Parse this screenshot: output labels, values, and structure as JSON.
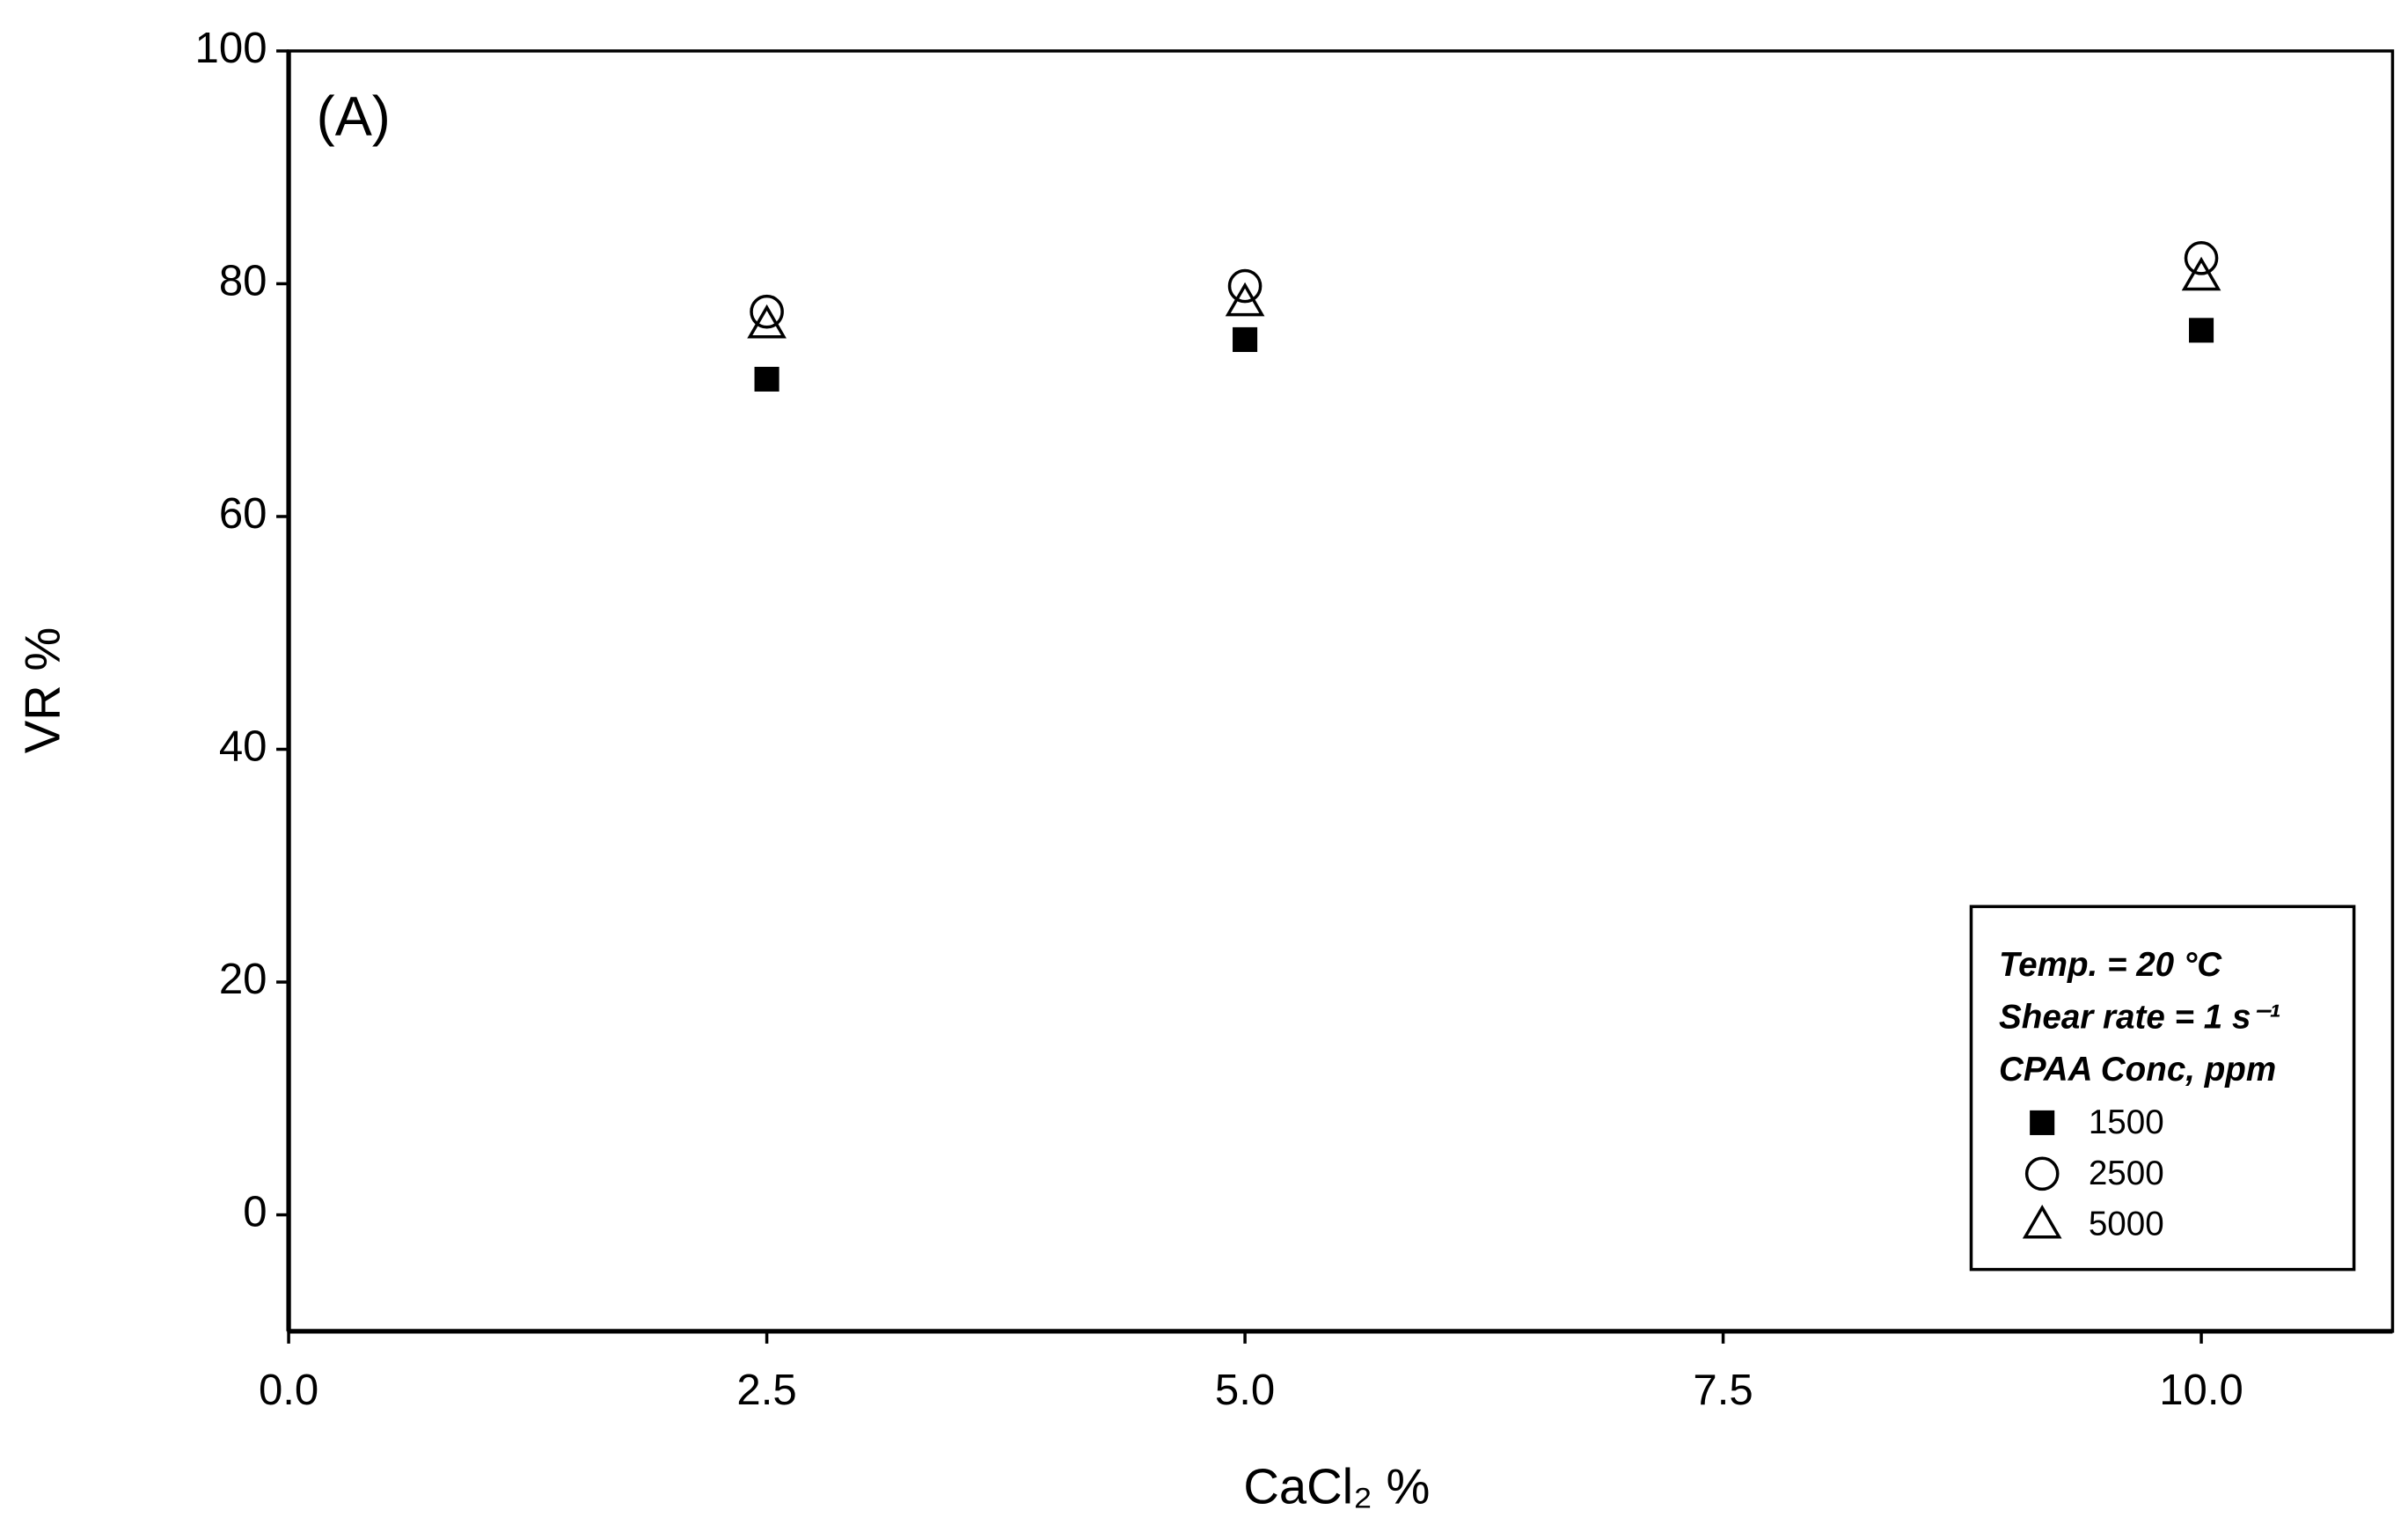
{
  "chart_data": {
    "type": "scatter",
    "panel_label": "(A)",
    "x_label": "CaCl₂ %",
    "y_label": "VR %",
    "xlim": [
      0,
      11
    ],
    "ylim": [
      -10,
      100
    ],
    "xticks": [
      {
        "value": 0,
        "label": "0.0"
      },
      {
        "value": 2.5,
        "label": "2.5"
      },
      {
        "value": 5,
        "label": "5.0"
      },
      {
        "value": 7.5,
        "label": "7.5"
      },
      {
        "value": 10,
        "label": "10.0"
      }
    ],
    "yticks": [
      0,
      20,
      40,
      60,
      80,
      100
    ],
    "grid": false,
    "legend_position": "lower right",
    "legend_notes": [
      "Temp. = 20 °C",
      "Shear rate = 1 s⁻¹"
    ],
    "legend_title": "CPAA Conc, ppm",
    "series": [
      {
        "name": "1500",
        "color": "#000000",
        "marker": "filled-square",
        "x": [
          2.5,
          5,
          10
        ],
        "values": [
          71.8,
          75.2,
          76.0
        ]
      },
      {
        "name": "2500",
        "color": "#000000",
        "marker": "open-circle",
        "x": [
          2.5,
          5,
          10
        ],
        "values": [
          77.6,
          79.8,
          82.2
        ]
      },
      {
        "name": "5000",
        "color": "#000000",
        "marker": "open-triangle",
        "x": [
          2.5,
          5,
          10
        ],
        "values": [
          76.5,
          78.4,
          80.6
        ]
      }
    ]
  }
}
